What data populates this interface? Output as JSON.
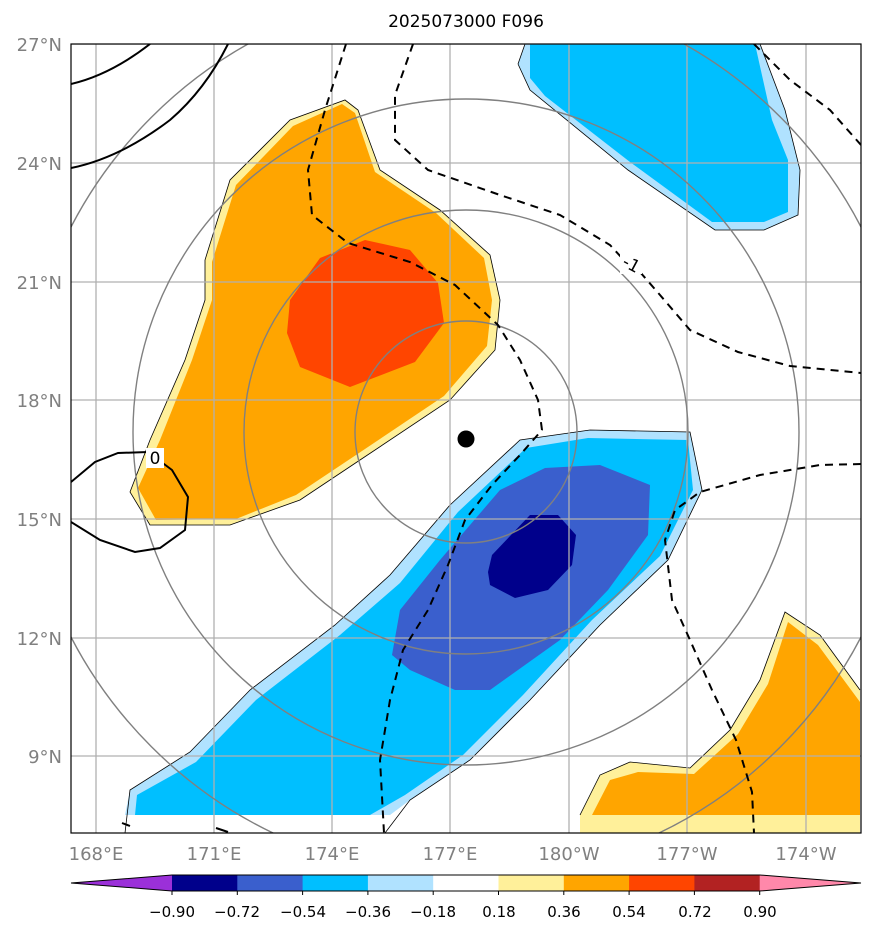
{
  "map": {
    "title": "2025073000 F096",
    "lat_labels": [
      "27°N",
      "24°N",
      "21°N",
      "18°N",
      "15°N",
      "12°N",
      "9°N"
    ],
    "lon_labels": [
      "168°E",
      "171°E",
      "174°E",
      "177°E",
      "180°W",
      "177°W",
      "174°W"
    ],
    "contour_labels": [
      "0",
      "-1"
    ],
    "colorbar": {
      "tick_labels": [
        "−0.90",
        "−0.72",
        "−0.54",
        "−0.36",
        "−0.18",
        "0.18",
        "0.36",
        "0.54",
        "0.72",
        "0.90"
      ],
      "colors": [
        "#9b30d9",
        "#00008b",
        "#3a5fcd",
        "#00bfff",
        "#b0e2ff",
        "#ffffff",
        "#fff09a",
        "#ffa500",
        "#ff4500",
        "#b22222",
        "#ff88aa"
      ]
    },
    "center_marker": "storm-center-dot"
  }
}
